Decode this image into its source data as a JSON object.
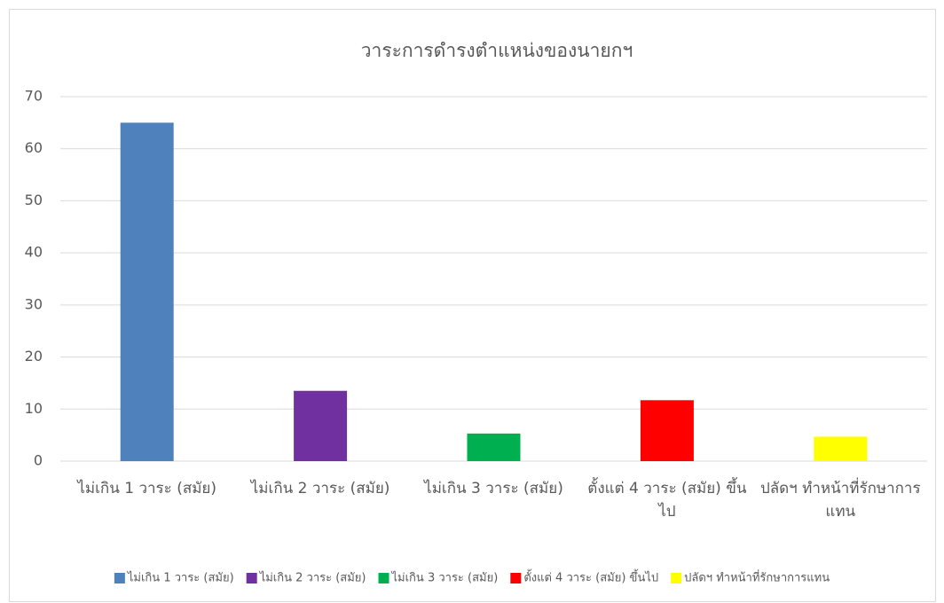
{
  "chart_data": {
    "type": "bar",
    "title": "วาระการดำรงตำแหน่งของนายกฯ",
    "categories": [
      "ไม่เกิน 1 วาระ (สมัย)",
      "ไม่เกิน 2 วาระ (สมัย)",
      "ไม่เกิน 3 วาระ (สมัย)",
      "ตั้งแต่ 4 วาระ (สมัย) ขึ้นไป",
      "ปลัดฯ ทำหน้าที่รักษาการแทน"
    ],
    "values": [
      65,
      13.5,
      5.3,
      11.7,
      4.7
    ],
    "colors": [
      "#4f81bd",
      "#7030a0",
      "#00b050",
      "#ff0000",
      "#ffff00"
    ],
    "ylim": [
      0,
      70
    ],
    "yticks": [
      0,
      10,
      20,
      30,
      40,
      50,
      60,
      70
    ],
    "grid": true,
    "legend": "bottom"
  }
}
